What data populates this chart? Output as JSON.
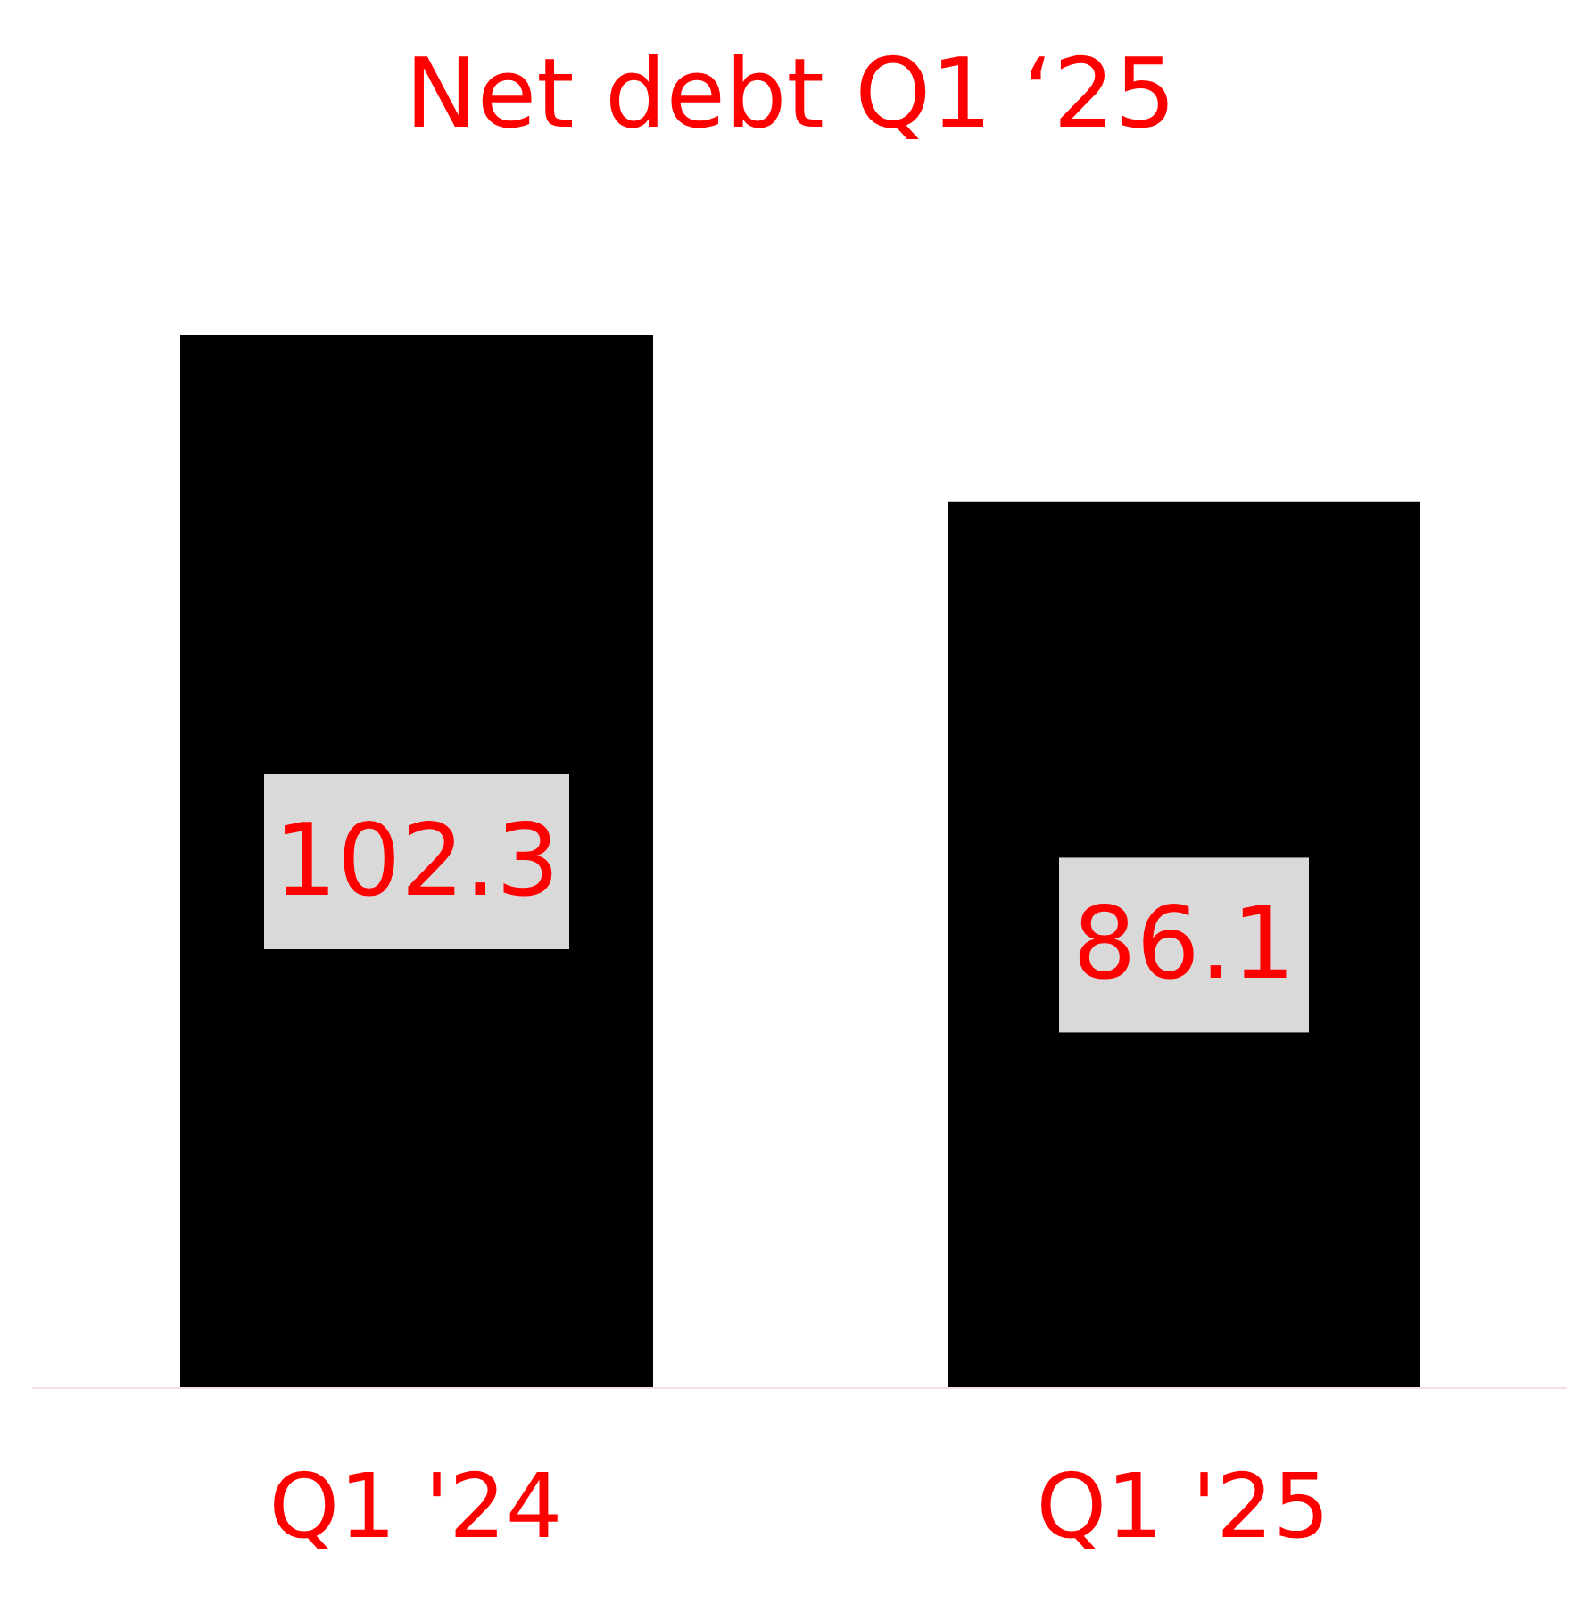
{
  "chart_data": {
    "type": "bar",
    "title": "Net debt Q1 ‘25",
    "categories": [
      "Q1 '24",
      "Q1 '25"
    ],
    "values": [
      102.3,
      86.1
    ],
    "color": "#000000",
    "data_labels": true
  }
}
